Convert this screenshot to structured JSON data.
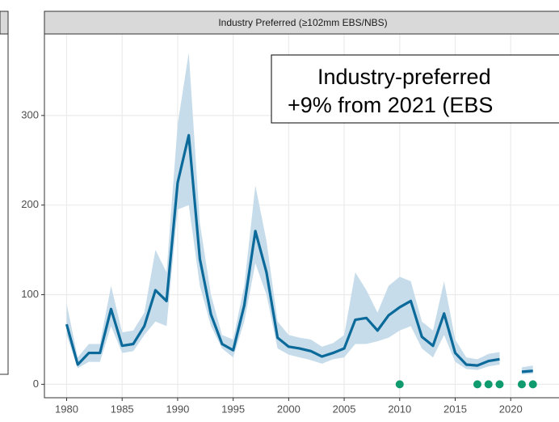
{
  "chart_data": {
    "type": "line",
    "strip_title": "Industry Preferred (≥102mm EBS/NBS)",
    "annotation": [
      "Industry-preferred",
      "+9% from 2021 (EBS"
    ],
    "x": [
      1980,
      1981,
      1982,
      1983,
      1984,
      1985,
      1986,
      1987,
      1988,
      1989,
      1990,
      1991,
      1992,
      1993,
      1994,
      1995,
      1996,
      1997,
      1998,
      1999,
      2000,
      2001,
      2002,
      2003,
      2004,
      2005,
      2006,
      2007,
      2008,
      2009,
      2010,
      2011,
      2012,
      2013,
      2014,
      2015,
      2016,
      2017,
      2018,
      2019,
      2020,
      2021,
      2022
    ],
    "series": [
      {
        "color": "#0b6a9a",
        "values": [
          67,
          22,
          35,
          35,
          84,
          43,
          45,
          65,
          105,
          93,
          225,
          278,
          140,
          78,
          45,
          38,
          88,
          171,
          125,
          52,
          42,
          40,
          37,
          31,
          35,
          40,
          72,
          74,
          60,
          77,
          86,
          93,
          53,
          43,
          79,
          35,
          22,
          21,
          26,
          28,
          null,
          14,
          15
        ]
      }
    ],
    "band": {
      "color": "#c6dcea",
      "lower": [
        55,
        18,
        25,
        25,
        65,
        35,
        37,
        55,
        70,
        65,
        195,
        200,
        110,
        65,
        40,
        30,
        70,
        135,
        100,
        40,
        33,
        30,
        27,
        23,
        28,
        30,
        45,
        45,
        48,
        52,
        60,
        65,
        40,
        30,
        55,
        25,
        17,
        16,
        20,
        22,
        null,
        11,
        12
      ],
      "upper": [
        90,
        30,
        45,
        45,
        110,
        58,
        60,
        80,
        150,
        125,
        290,
        370,
        180,
        100,
        55,
        50,
        110,
        222,
        160,
        70,
        55,
        52,
        50,
        42,
        46,
        55,
        125,
        105,
        80,
        110,
        120,
        115,
        70,
        60,
        115,
        50,
        30,
        28,
        34,
        36,
        null,
        19,
        21
      ]
    },
    "points": {
      "color": "#0f9b6d",
      "x": [
        2010,
        2017,
        2018,
        2019,
        2021,
        2022
      ],
      "values": [
        0,
        0,
        0,
        0,
        0,
        0
      ]
    },
    "xlim": [
      1978,
      2024.35
    ],
    "ylim": [
      -15,
      391
    ],
    "xticks": [
      1980,
      1985,
      1990,
      1995,
      2000,
      2005,
      2010,
      2015,
      2020
    ],
    "yticks": [
      0,
      100,
      200,
      300
    ],
    "grid": true
  }
}
